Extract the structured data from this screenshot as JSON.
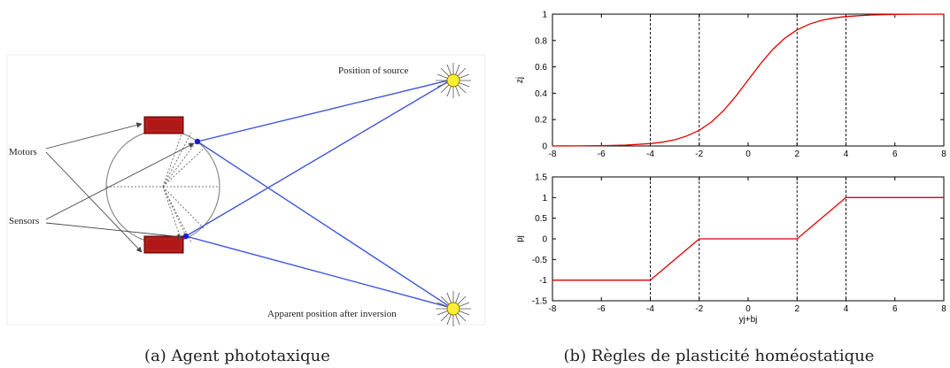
{
  "diagram": {
    "labels": {
      "source": "Position of source",
      "motors": "Motors",
      "sensors": "Sensors",
      "apparent": "Apparent position after inversion"
    },
    "caption": "(a) Agent phototaxique"
  },
  "plots_caption": "(b) Règles de plasticité homéostatique",
  "colors": {
    "curve": "#e00000",
    "rays": "#3f55d8",
    "motor": "#b01818",
    "sun": "#ffee33"
  },
  "chart_data": [
    {
      "type": "line",
      "title": "",
      "xlabel": "",
      "ylabel": "zj",
      "xlim": [
        -8,
        8
      ],
      "ylim": [
        0,
        1
      ],
      "x_ticks": [
        "-8",
        "-6",
        "-4",
        "-2",
        "0",
        "2",
        "4",
        "6",
        "8"
      ],
      "y_ticks": [
        "0",
        "0.2",
        "0.4",
        "0.6",
        "0.8",
        "1"
      ],
      "vlines": [
        -4,
        -2,
        2,
        4
      ],
      "grid": false,
      "series": [
        {
          "x": [
            -8,
            -7,
            -6,
            -5,
            -4,
            -3.5,
            -3,
            -2.5,
            -2,
            -1.5,
            -1,
            -0.5,
            0,
            0.5,
            1,
            1.5,
            2,
            2.5,
            3,
            3.5,
            4,
            5,
            6,
            7,
            8
          ],
          "values": [
            0.0003,
            0.0009,
            0.0025,
            0.0067,
            0.018,
            0.029,
            0.047,
            0.076,
            0.119,
            0.182,
            0.269,
            0.378,
            0.5,
            0.622,
            0.731,
            0.818,
            0.881,
            0.924,
            0.953,
            0.971,
            0.982,
            0.993,
            0.998,
            0.999,
            1.0
          ]
        }
      ]
    },
    {
      "type": "line",
      "title": "",
      "xlabel": "yj+bj",
      "ylabel": "pj",
      "xlim": [
        -8,
        8
      ],
      "ylim": [
        -1.5,
        1.5
      ],
      "x_ticks": [
        "-8",
        "-6",
        "-4",
        "-2",
        "0",
        "2",
        "4",
        "6",
        "8"
      ],
      "y_ticks": [
        "-1.5",
        "-1",
        "-0.5",
        "0",
        "0.5",
        "1",
        "1.5"
      ],
      "vlines": [
        -4,
        -2,
        2,
        4
      ],
      "grid": false,
      "series": [
        {
          "x": [
            -8,
            -4,
            -2,
            2,
            4,
            8
          ],
          "values": [
            -1,
            -1,
            0,
            0,
            1,
            1
          ]
        }
      ]
    }
  ]
}
